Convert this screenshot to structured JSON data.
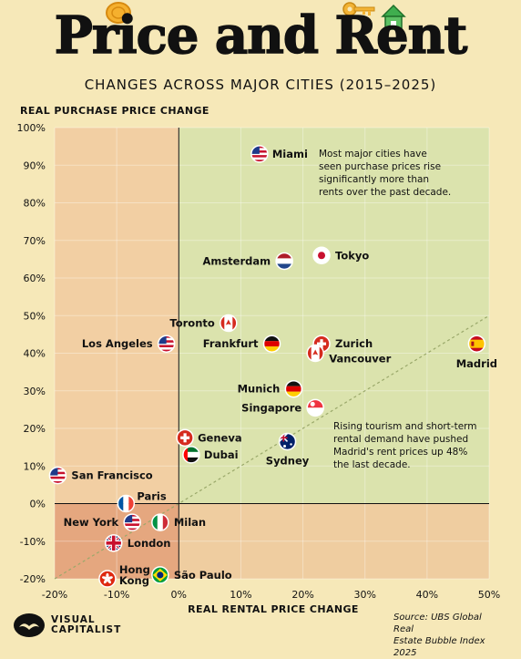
{
  "header": {
    "title": "Price and Rent",
    "subtitle": "CHANGES ACROSS MAJOR CITIES (2015–2025)"
  },
  "footer": {
    "logo_line1": "VISUAL",
    "logo_line2": "CAPITALIST",
    "source_line1": "Source: UBS Global Real",
    "source_line2": "Estate Bubble Index 2025"
  },
  "colors": {
    "background": "#f6e8b8",
    "top_right_quadrant": "#dbe3ad",
    "top_left_quadrant": "#f2cfa3",
    "bottom_right_quadrant": "#efcda0",
    "bottom_left_quadrant": "#e5a77f",
    "diagonal": "#9aa86a"
  },
  "chart_data": {
    "type": "scatter",
    "xlabel": "REAL RENTAL PRICE CHANGE",
    "ylabel": "REAL PURCHASE PRICE CHANGE",
    "xlim": [
      -20,
      50
    ],
    "ylim": [
      -20,
      100
    ],
    "x_ticks": [
      "-20%",
      "-10%",
      "0%",
      "10%",
      "20%",
      "30%",
      "40%",
      "50%"
    ],
    "y_ticks": [
      "100%",
      "90%",
      "80%",
      "70%",
      "60%",
      "50%",
      "40%",
      "30%",
      "20%",
      "10%",
      "0%",
      "-10%",
      "-20%"
    ],
    "reference_line": "y = x",
    "points": [
      {
        "city": "Miami",
        "x": 13,
        "y": 93,
        "flag": "us-flag-icon"
      },
      {
        "city": "Tokyo",
        "x": 23,
        "y": 66,
        "flag": "japan-flag-icon"
      },
      {
        "city": "Amsterdam",
        "x": 17,
        "y": 64.5,
        "flag": "netherlands-flag-icon"
      },
      {
        "city": "Toronto",
        "x": 8,
        "y": 48,
        "flag": "canada-flag-icon"
      },
      {
        "city": "Los Angeles",
        "x": -2,
        "y": 42.5,
        "flag": "us-flag-icon"
      },
      {
        "city": "Frankfurt",
        "x": 15,
        "y": 42.5,
        "flag": "germany-flag-icon"
      },
      {
        "city": "Zurich",
        "x": 23,
        "y": 42.5,
        "flag": "switzerland-flag-icon"
      },
      {
        "city": "Vancouver",
        "x": 22,
        "y": 40,
        "flag": "canada-flag-icon"
      },
      {
        "city": "Madrid",
        "x": 48,
        "y": 42.5,
        "flag": "spain-flag-icon"
      },
      {
        "city": "Munich",
        "x": 18.5,
        "y": 30.5,
        "flag": "germany-flag-icon"
      },
      {
        "city": "Singapore",
        "x": 22,
        "y": 25.5,
        "flag": "singapore-flag-icon"
      },
      {
        "city": "Geneva",
        "x": 1,
        "y": 17.5,
        "flag": "switzerland-flag-icon"
      },
      {
        "city": "Dubai",
        "x": 2,
        "y": 13,
        "flag": "uae-flag-icon"
      },
      {
        "city": "Sydney",
        "x": 17.5,
        "y": 16.5,
        "flag": "australia-flag-icon"
      },
      {
        "city": "San Francisco",
        "x": -19.5,
        "y": 7.5,
        "flag": "us-flag-icon"
      },
      {
        "city": "Paris",
        "x": -8.5,
        "y": 0,
        "flag": "france-flag-icon"
      },
      {
        "city": "New York",
        "x": -7.5,
        "y": -5,
        "flag": "us-flag-icon"
      },
      {
        "city": "Milan",
        "x": -3,
        "y": -5,
        "flag": "italy-flag-icon"
      },
      {
        "city": "London",
        "x": -10.5,
        "y": -10.5,
        "flag": "uk-flag-icon"
      },
      {
        "city": "Hong Kong",
        "x": -11.5,
        "y": -20,
        "flag": "hong-kong-flag-icon"
      },
      {
        "city": "São Paulo",
        "x": -3,
        "y": -19,
        "flag": "brazil-flag-icon"
      }
    ],
    "annotations": [
      {
        "lines": [
          "Most major cities have",
          "seen purchase prices rise",
          "significantly more than",
          "rents over the past decade."
        ]
      },
      {
        "lines": [
          "Rising tourism and short-term",
          "rental demand have pushed",
          "Madrid's rent prices up 48%",
          "the last decade."
        ]
      }
    ]
  }
}
